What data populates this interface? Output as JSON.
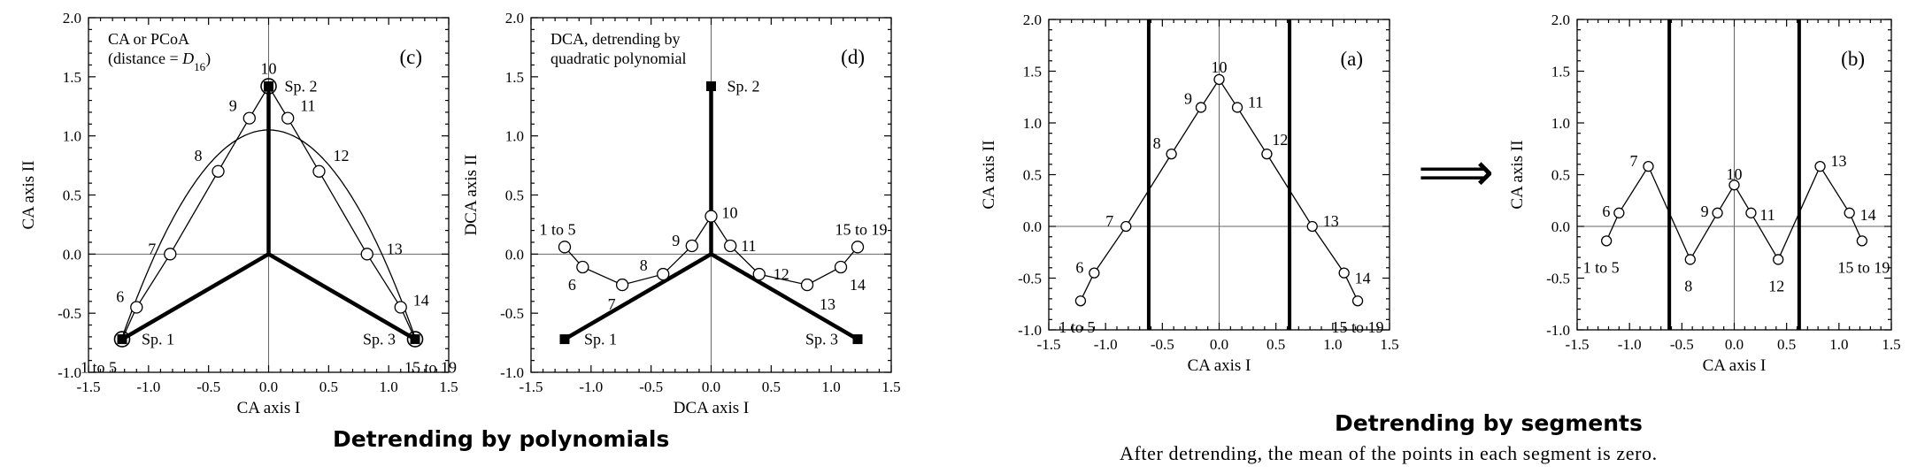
{
  "headings": {
    "polynomials": "Detrending by polynomials",
    "segments": "Detrending by segments",
    "segments_note": "After detrending, the mean of the points in each segment is zero."
  },
  "arrow_glyph": "⟹",
  "chart_data": [
    {
      "id": "c",
      "type": "scatter",
      "panel_label": "(c)",
      "note_lines": [
        "CA or PCoA",
        "(distance = D16)"
      ],
      "xlabel": "CA axis I",
      "ylabel": "CA axis II",
      "xlim": [
        -1.5,
        1.5
      ],
      "ylim": [
        -1.0,
        2.0
      ],
      "x_ticks": [
        "-1.5",
        "-1.0",
        "-0.5",
        "0.0",
        "0.5",
        "1.0",
        "1.5"
      ],
      "y_ticks": [
        "-1.0",
        "-0.5",
        "0.0",
        "0.5",
        "1.0",
        "1.5",
        "2.0"
      ],
      "sites": [
        {
          "label": "1 to 5",
          "x": -1.22,
          "y": -0.72
        },
        {
          "label": "6",
          "x": -1.1,
          "y": -0.45
        },
        {
          "label": "7",
          "x": -0.82,
          "y": 0.0
        },
        {
          "label": "8",
          "x": -0.42,
          "y": 0.7
        },
        {
          "label": "9",
          "x": -0.16,
          "y": 1.15
        },
        {
          "label": "10",
          "x": 0.0,
          "y": 1.42
        },
        {
          "label": "11",
          "x": 0.16,
          "y": 1.15
        },
        {
          "label": "12",
          "x": 0.42,
          "y": 0.7
        },
        {
          "label": "13",
          "x": 0.82,
          "y": 0.0
        },
        {
          "label": "14",
          "x": 1.1,
          "y": -0.45
        },
        {
          "label": "15 to 19",
          "x": 1.22,
          "y": -0.72
        }
      ],
      "species": [
        {
          "label": "Sp. 1",
          "x": -1.22,
          "y": -0.72
        },
        {
          "label": "Sp. 2",
          "x": 0.0,
          "y": 1.42
        },
        {
          "label": "Sp. 3",
          "x": 1.22,
          "y": -0.72
        }
      ],
      "polynomial_curve": {
        "a": 1.05,
        "b": -1.18
      }
    },
    {
      "id": "d",
      "type": "scatter",
      "panel_label": "(d)",
      "note_lines": [
        "DCA, detrending by",
        "quadratic polynomial"
      ],
      "xlabel": "DCA axis I",
      "ylabel": "DCA axis II",
      "xlim": [
        -1.5,
        1.5
      ],
      "ylim": [
        -1.0,
        2.0
      ],
      "x_ticks": [
        "-1.5",
        "-1.0",
        "-0.5",
        "0.0",
        "0.5",
        "1.0",
        "1.5"
      ],
      "y_ticks": [
        "-1.0",
        "-0.5",
        "0.0",
        "0.5",
        "1.0",
        "1.5",
        "2.0"
      ],
      "sites": [
        {
          "label": "1 to 5",
          "x": -1.22,
          "y": 0.06
        },
        {
          "label": "6",
          "x": -1.07,
          "y": -0.11
        },
        {
          "label": "7",
          "x": -0.74,
          "y": -0.26
        },
        {
          "label": "8",
          "x": -0.4,
          "y": -0.17
        },
        {
          "label": "9",
          "x": -0.16,
          "y": 0.07
        },
        {
          "label": "10",
          "x": 0.0,
          "y": 0.32
        },
        {
          "label": "11",
          "x": 0.16,
          "y": 0.07
        },
        {
          "label": "12",
          "x": 0.4,
          "y": -0.17
        },
        {
          "label": "13",
          "x": 0.8,
          "y": -0.26
        },
        {
          "label": "14",
          "x": 1.08,
          "y": -0.11
        },
        {
          "label": "15 to 19",
          "x": 1.22,
          "y": 0.06
        }
      ],
      "species": [
        {
          "label": "Sp. 1",
          "x": -1.22,
          "y": -0.72
        },
        {
          "label": "Sp. 2",
          "x": 0.0,
          "y": 1.42
        },
        {
          "label": "Sp. 3",
          "x": 1.22,
          "y": -0.72
        }
      ]
    },
    {
      "id": "a",
      "type": "scatter",
      "panel_label": "(a)",
      "xlabel": "CA axis I",
      "ylabel": "CA axis II",
      "xlim": [
        -1.5,
        1.5
      ],
      "ylim": [
        -1.0,
        2.0
      ],
      "x_ticks": [
        "-1.5",
        "-1.0",
        "-0.5",
        "0.0",
        "0.5",
        "1.0",
        "1.5"
      ],
      "y_ticks": [
        "-1.0",
        "-0.5",
        "0.0",
        "0.5",
        "1.0",
        "1.5",
        "2.0"
      ],
      "segment_boundaries_x": [
        -0.62,
        0.62
      ],
      "sites": [
        {
          "label": "1 to 5",
          "x": -1.22,
          "y": -0.72
        },
        {
          "label": "6",
          "x": -1.1,
          "y": -0.45
        },
        {
          "label": "7",
          "x": -0.82,
          "y": 0.0
        },
        {
          "label": "8",
          "x": -0.42,
          "y": 0.7
        },
        {
          "label": "9",
          "x": -0.16,
          "y": 1.15
        },
        {
          "label": "10",
          "x": 0.0,
          "y": 1.42
        },
        {
          "label": "11",
          "x": 0.16,
          "y": 1.15
        },
        {
          "label": "12",
          "x": 0.42,
          "y": 0.7
        },
        {
          "label": "13",
          "x": 0.82,
          "y": 0.0
        },
        {
          "label": "14",
          "x": 1.1,
          "y": -0.45
        },
        {
          "label": "15 to 19",
          "x": 1.22,
          "y": -0.72
        }
      ]
    },
    {
      "id": "b",
      "type": "scatter",
      "panel_label": "(b)",
      "xlabel": "CA axis I",
      "ylabel": "CA axis II",
      "xlim": [
        -1.5,
        1.5
      ],
      "ylim": [
        -1.0,
        2.0
      ],
      "x_ticks": [
        "-1.5",
        "-1.0",
        "-0.5",
        "0.0",
        "0.5",
        "1.0",
        "1.5"
      ],
      "y_ticks": [
        "-1.0",
        "-0.5",
        "0.0",
        "0.5",
        "1.0",
        "1.5",
        "2.0"
      ],
      "segment_boundaries_x": [
        -0.62,
        0.62
      ],
      "sites": [
        {
          "label": "1 to 5",
          "x": -1.22,
          "y": -0.14
        },
        {
          "label": "6",
          "x": -1.1,
          "y": 0.13
        },
        {
          "label": "7",
          "x": -0.82,
          "y": 0.58
        },
        {
          "label": "8",
          "x": -0.42,
          "y": -0.32
        },
        {
          "label": "9",
          "x": -0.16,
          "y": 0.13
        },
        {
          "label": "10",
          "x": 0.0,
          "y": 0.4
        },
        {
          "label": "11",
          "x": 0.16,
          "y": 0.13
        },
        {
          "label": "12",
          "x": 0.42,
          "y": -0.32
        },
        {
          "label": "13",
          "x": 0.82,
          "y": 0.58
        },
        {
          "label": "14",
          "x": 1.1,
          "y": 0.13
        },
        {
          "label": "15 to 19",
          "x": 1.22,
          "y": -0.14
        }
      ]
    }
  ]
}
